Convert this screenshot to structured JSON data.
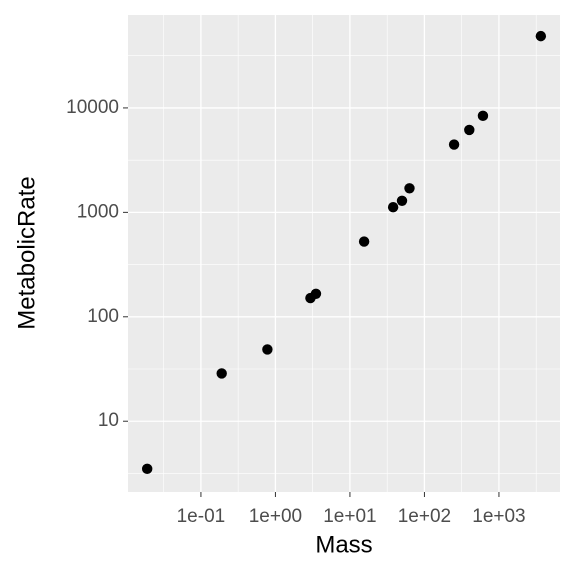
{
  "chart_data": {
    "type": "scatter",
    "x_label": "Mass",
    "y_label": "MetabolicRate",
    "x": [
      0.019,
      0.19,
      0.78,
      2.95,
      3.5,
      15.5,
      38,
      50,
      63,
      250,
      400,
      610,
      3650
    ],
    "series": [
      {
        "color": "#000000",
        "values": [
          3.5,
          28.7,
          48.7,
          151,
          166,
          525,
          1120,
          1290,
          1700,
          4460,
          6160,
          8400,
          48700
        ]
      }
    ],
    "xlog": true,
    "ylog": true,
    "xlim": [
      0.0105,
      6600
    ],
    "ylim": [
      2.1,
      77600
    ],
    "xticks": [
      {
        "value": 0.1,
        "label": "1e-01"
      },
      {
        "value": 1,
        "label": "1e+00"
      },
      {
        "value": 10,
        "label": "1e+01"
      },
      {
        "value": 100,
        "label": "1e+02"
      },
      {
        "value": 1000,
        "label": "1e+03"
      }
    ],
    "yticks": [
      10,
      100,
      1000,
      10000
    ],
    "grid": true,
    "panel_color": "#ebebeb"
  }
}
